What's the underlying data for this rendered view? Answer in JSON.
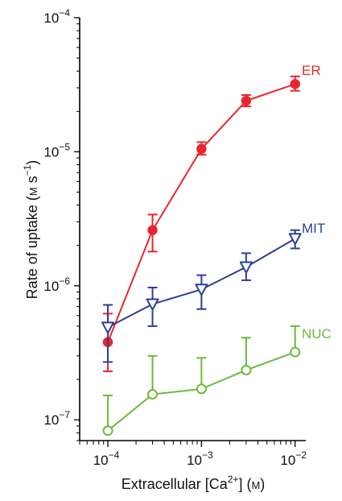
{
  "chart_data": {
    "type": "line",
    "title": "",
    "xlabel": "Extracellular [Ca2+] (M)",
    "ylabel": "Rate of uptake (M s−1)",
    "x_scale": "log",
    "y_scale": "log",
    "xlim": [
      5e-05,
      0.013
    ],
    "ylim": [
      7e-08,
      0.0001
    ],
    "x_ticks": [
      {
        "value": 0.0001,
        "base": "10",
        "exp": "−4"
      },
      {
        "value": 0.001,
        "base": "10",
        "exp": "−3"
      },
      {
        "value": 0.01,
        "base": "10",
        "exp": "−2"
      }
    ],
    "y_ticks": [
      {
        "value": 1e-07,
        "base": "10",
        "exp": "−7"
      },
      {
        "value": 1e-06,
        "base": "10",
        "exp": "−6"
      },
      {
        "value": 1e-05,
        "base": "10",
        "exp": "−5"
      },
      {
        "value": 0.0001,
        "base": "10",
        "exp": "−4"
      }
    ],
    "grid": false,
    "legend": "inline labels at right end of each series",
    "series": [
      {
        "name": "ER",
        "color": "#e8262d",
        "marker": "filled-circle",
        "x": [
          0.0001,
          0.0003,
          0.001,
          0.003,
          0.01
        ],
        "y": [
          3.8e-07,
          2.6e-06,
          1.05e-05,
          2.4e-05,
          3.2e-05
        ],
        "err_up": [
          6.2e-07,
          3.4e-06,
          1.18e-05,
          2.65e-05,
          3.65e-05
        ],
        "err_down": [
          2.3e-07,
          1.8e-06,
          9.5e-06,
          2.18e-05,
          2.85e-05
        ]
      },
      {
        "name": "MIT",
        "color": "#2e3e92",
        "marker": "open-triangle-down",
        "x": [
          0.0001,
          0.0003,
          0.001,
          0.003,
          0.01
        ],
        "y": [
          4.9e-07,
          7.3e-07,
          9.4e-07,
          1.38e-06,
          2.25e-06
        ],
        "err_up": [
          7.2e-07,
          9.7e-07,
          1.2e-06,
          1.75e-06,
          2.6e-06
        ],
        "err_down": [
          2.7e-07,
          5e-07,
          6.7e-07,
          1.1e-06,
          1.9e-06
        ]
      },
      {
        "name": "NUC",
        "color": "#6bb93c",
        "marker": "open-circle",
        "x": [
          0.0001,
          0.0003,
          0.001,
          0.003,
          0.01
        ],
        "y": [
          8.3e-08,
          1.55e-07,
          1.7e-07,
          2.35e-07,
          3.2e-07
        ],
        "err_up": [
          1.52e-07,
          3e-07,
          2.9e-07,
          4.1e-07,
          5e-07
        ],
        "err_down": null
      }
    ]
  }
}
